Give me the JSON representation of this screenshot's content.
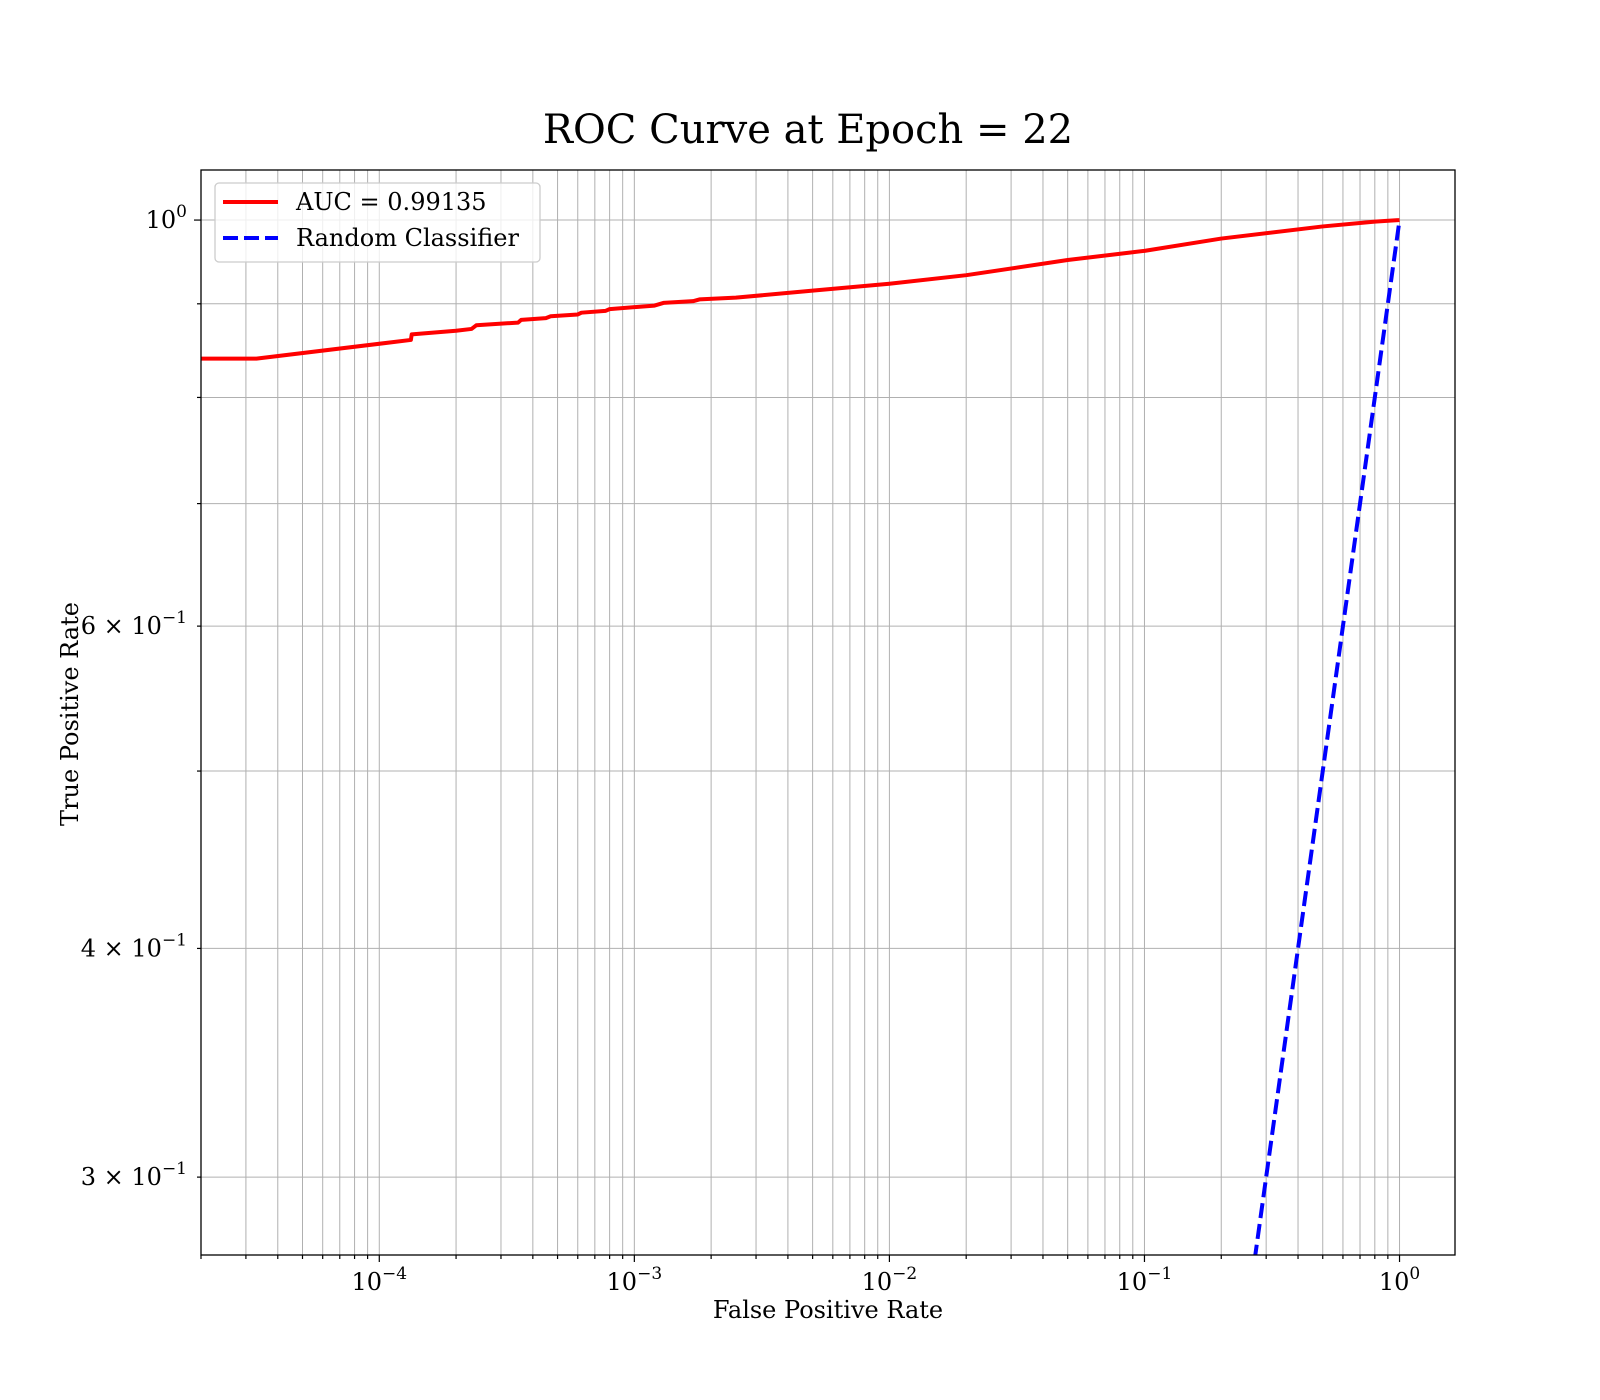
{
  "chart_data": {
    "type": "line",
    "title": "ROC Curve at Epoch = 22",
    "xlabel": "False Positive Rate",
    "ylabel": "True Positive Rate",
    "xscale": "log",
    "yscale": "log",
    "xlim": [
      2e-05,
      1.65
    ],
    "ylim": [
      0.272,
      1.065
    ],
    "grid": "both",
    "legend_position": "upper-left",
    "x_ticks": [
      {
        "value": 0.0001,
        "base": "10",
        "exp": "−4"
      },
      {
        "value": 0.001,
        "base": "10",
        "exp": "−3"
      },
      {
        "value": 0.01,
        "base": "10",
        "exp": "−2"
      },
      {
        "value": 0.1,
        "base": "10",
        "exp": "−1"
      },
      {
        "value": 1,
        "base": "10",
        "exp": "0"
      }
    ],
    "y_ticks": [
      {
        "value": 0.3,
        "base": "3 × 10",
        "exp": "−1"
      },
      {
        "value": 0.4,
        "base": "4 × 10",
        "exp": "−1"
      },
      {
        "value": 0.6,
        "base": "6 × 10",
        "exp": "−1"
      },
      {
        "value": 1.0,
        "base": "10",
        "exp": "0"
      }
    ],
    "series": [
      {
        "name": "AUC = 0.99135",
        "color": "#ff0000",
        "style": "solid",
        "x": [
          2e-05,
          3.3e-05,
          0.000133,
          0.000134,
          0.0002,
          0.00023,
          0.00024,
          0.00035,
          0.00036,
          0.00045,
          0.00047,
          0.0006,
          0.00062,
          0.00077,
          0.0008,
          0.0012,
          0.0013,
          0.0017,
          0.0018,
          0.0025,
          0.005,
          0.01,
          0.02,
          0.05,
          0.1,
          0.2,
          0.5,
          0.8,
          1.0
        ],
        "y": [
          0.84,
          0.84,
          0.86,
          0.866,
          0.87,
          0.872,
          0.876,
          0.879,
          0.882,
          0.884,
          0.886,
          0.888,
          0.89,
          0.892,
          0.894,
          0.898,
          0.901,
          0.903,
          0.905,
          0.907,
          0.915,
          0.923,
          0.933,
          0.951,
          0.962,
          0.977,
          0.992,
          0.998,
          1.0
        ]
      },
      {
        "name": "Random Classifier",
        "color": "#0000ff",
        "style": "dashed",
        "x": [
          0.25,
          0.3,
          0.4,
          0.5,
          0.6,
          0.7,
          0.8,
          0.9,
          1.0
        ],
        "y": [
          0.25,
          0.3,
          0.4,
          0.5,
          0.6,
          0.7,
          0.8,
          0.9,
          1.0
        ]
      }
    ]
  }
}
